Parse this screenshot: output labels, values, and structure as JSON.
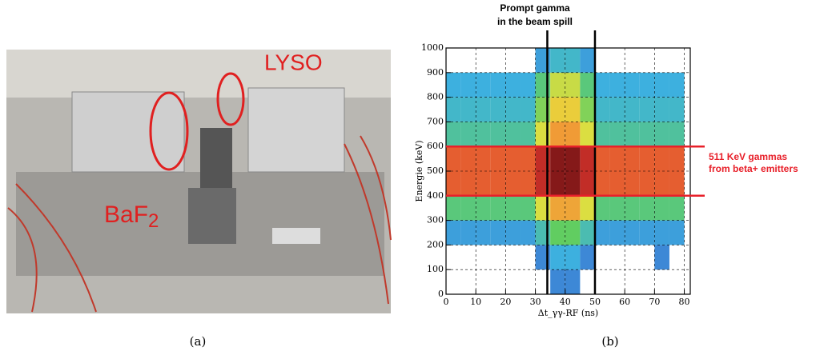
{
  "photo": {
    "labels": {
      "lyso": "LYSO",
      "baf": "BaF",
      "baf_subscript": "2"
    },
    "caption": "(a)"
  },
  "chart_data": {
    "type": "heatmap",
    "caption": "(b)",
    "annotation_top": [
      "Prompt gamma",
      "in the beam spill"
    ],
    "annotation_right": [
      "511 KeV gammas",
      "from beta+ emitters"
    ],
    "xlabel": "Δt_γγ-RF (ns)",
    "ylabel": "Energie (keV)",
    "xlim": [
      0,
      82
    ],
    "ylim": [
      0,
      1000
    ],
    "xticks": [
      0,
      10,
      20,
      30,
      40,
      50,
      60,
      70,
      80
    ],
    "yticks": [
      0,
      100,
      200,
      300,
      400,
      500,
      600,
      700,
      800,
      900,
      1000
    ],
    "grid": true,
    "x_bins": [
      0,
      5,
      10,
      15,
      20,
      25,
      30,
      35,
      40,
      45,
      50,
      55,
      60,
      65,
      70,
      75,
      80
    ],
    "y_bins": [
      0,
      100,
      200,
      300,
      400,
      500,
      600,
      700,
      800,
      900,
      1000
    ],
    "z": [
      [
        0,
        0,
        0,
        0,
        0,
        0,
        0,
        1,
        1,
        0,
        0,
        0,
        0,
        0,
        0,
        0
      ],
      [
        0,
        0,
        0,
        0,
        0,
        0,
        1,
        3,
        3,
        1,
        0,
        0,
        0,
        0,
        1,
        0
      ],
      [
        2,
        2,
        2,
        2,
        2,
        2,
        5,
        10,
        10,
        5,
        2,
        2,
        2,
        2,
        2,
        2
      ],
      [
        8,
        8,
        8,
        8,
        8,
        8,
        20,
        35,
        35,
        20,
        8,
        8,
        8,
        8,
        8,
        8
      ],
      [
        60,
        60,
        60,
        60,
        60,
        60,
        90,
        120,
        120,
        90,
        60,
        60,
        60,
        60,
        60,
        60
      ],
      [
        60,
        60,
        60,
        60,
        60,
        60,
        90,
        120,
        120,
        90,
        60,
        60,
        60,
        60,
        60,
        60
      ],
      [
        6,
        6,
        6,
        6,
        6,
        6,
        20,
        38,
        38,
        20,
        6,
        6,
        6,
        6,
        6,
        6
      ],
      [
        4,
        4,
        4,
        4,
        4,
        4,
        12,
        25,
        25,
        12,
        4,
        4,
        4,
        4,
        4,
        4
      ],
      [
        3,
        3,
        3,
        3,
        3,
        3,
        8,
        18,
        18,
        8,
        3,
        3,
        3,
        3,
        3,
        3
      ],
      [
        0,
        0,
        0,
        0,
        0,
        0,
        2,
        4,
        4,
        2,
        0,
        0,
        0,
        0,
        0,
        0
      ]
    ],
    "vlines": [
      34,
      50
    ],
    "vline_color": "#000000",
    "hlines": [
      400,
      600
    ],
    "hline_color": "#e8202a"
  }
}
